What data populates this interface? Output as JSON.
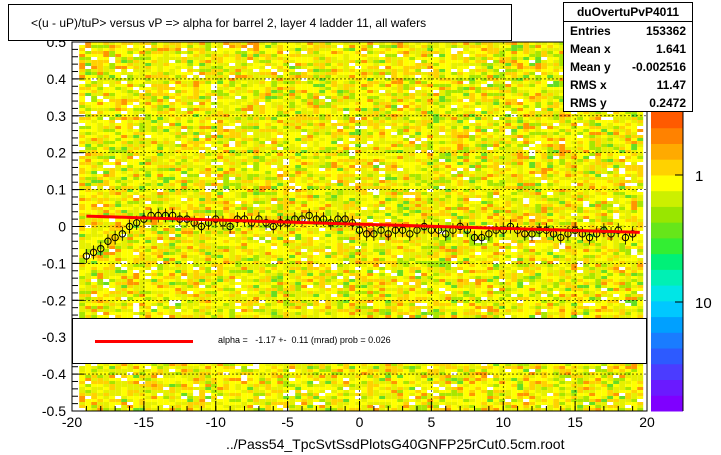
{
  "title": "<(u - uP)/tuP> versus   vP => alpha for barrel 2, layer 4 ladder 11, all wafers",
  "stats": {
    "name": "duOvertuPvP4011",
    "rows": [
      {
        "label": "Entries",
        "value": "153362"
      },
      {
        "label": "Mean x",
        "value": "1.641"
      },
      {
        "label": "Mean y",
        "value": "-0.002516"
      },
      {
        "label": "RMS x",
        "value": "11.47"
      },
      {
        "label": "RMS y",
        "value": "0.2472"
      }
    ]
  },
  "legend": {
    "text": "alpha =   -1.17 +-  0.11 (mrad) prob = 0.026",
    "line_color": "#ff0000"
  },
  "footer": "../Pass54_TpcSvtSsdPlotsG40GNFP25rCut0.5cm.root",
  "colors": {
    "fit": "#ff0000",
    "grid": "#000000"
  },
  "chart_data": {
    "type": "heatmap",
    "xlim": [
      -20,
      20
    ],
    "ylim": [
      -0.5,
      0.5
    ],
    "x_ticks": [
      "-20",
      "-15",
      "-10",
      "-5",
      "0",
      "5",
      "10",
      "15",
      "20"
    ],
    "y_ticks": [
      "-0.5",
      "-0.4",
      "-0.3",
      "-0.2",
      "-0.1",
      "0",
      "0.1",
      "0.2",
      "0.3",
      "0.4",
      "0.5"
    ],
    "palette_ticks": [
      "1",
      "10"
    ],
    "grid": true,
    "log_z": true,
    "fit_line": {
      "x": [
        -19,
        19.5
      ],
      "y": [
        0.028,
        -0.016
      ]
    },
    "profile": {
      "x": [
        -19,
        -18.5,
        -18,
        -17.5,
        -17,
        -16.5,
        -16,
        -15.5,
        -15,
        -14.5,
        -14,
        -13.5,
        -13,
        -12.5,
        -12,
        -11.5,
        -11,
        -10.5,
        -10,
        -9.5,
        -9,
        -8.5,
        -8,
        -7.5,
        -7,
        -6.5,
        -6,
        -5.5,
        -5,
        -4.5,
        -4,
        -3.5,
        -3,
        -2.5,
        -2,
        -1.5,
        -1,
        -0.5,
        0,
        0.5,
        1,
        1.5,
        2,
        2.5,
        3,
        3.5,
        4,
        4.5,
        5,
        5.5,
        6,
        6.5,
        7,
        7.5,
        8,
        8.5,
        9,
        9.5,
        10,
        10.5,
        11,
        11.5,
        12,
        12.5,
        13,
        13.5,
        14,
        14.5,
        15,
        15.5,
        16,
        16.5,
        17,
        17.5,
        18,
        18.5,
        19
      ],
      "y": [
        -0.08,
        -0.07,
        -0.06,
        -0.04,
        -0.03,
        -0.02,
        0.0,
        0.01,
        0.02,
        0.03,
        0.03,
        0.03,
        0.03,
        0.02,
        0.02,
        0.01,
        0.0,
        0.01,
        0.02,
        0.01,
        0.0,
        0.02,
        0.02,
        0.01,
        0.02,
        0.01,
        0.0,
        0.01,
        0.01,
        0.02,
        0.02,
        0.03,
        0.02,
        0.02,
        0.01,
        0.02,
        0.02,
        0.01,
        -0.01,
        -0.02,
        -0.02,
        -0.01,
        -0.02,
        -0.01,
        -0.01,
        -0.02,
        -0.01,
        0.0,
        -0.01,
        -0.01,
        -0.02,
        -0.01,
        0.0,
        -0.01,
        -0.03,
        -0.03,
        -0.02,
        -0.01,
        -0.01,
        0.0,
        -0.01,
        -0.02,
        -0.02,
        -0.01,
        -0.01,
        -0.02,
        -0.03,
        -0.02,
        -0.01,
        -0.02,
        -0.03,
        -0.02,
        -0.01,
        -0.02,
        -0.01,
        -0.03,
        -0.02
      ]
    }
  }
}
